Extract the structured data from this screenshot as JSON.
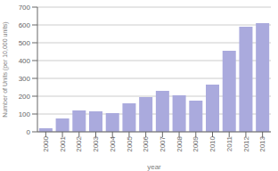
{
  "chart_data": {
    "type": "bar",
    "categories": [
      "2000",
      "2001",
      "2002",
      "2003",
      "2004",
      "2005",
      "2006",
      "2007",
      "2008",
      "2009",
      "2010",
      "2011",
      "2012",
      "2013"
    ],
    "values": [
      20,
      75,
      120,
      115,
      105,
      160,
      195,
      230,
      205,
      175,
      265,
      455,
      590,
      610
    ],
    "color": "#aaaadd",
    "xlabel": "year",
    "ylabel": "Number of Units (per 10,000 units)",
    "ylim": [
      0,
      700
    ],
    "yticks": [
      0,
      100,
      200,
      300,
      400,
      500,
      600,
      700
    ],
    "grid": true
  }
}
